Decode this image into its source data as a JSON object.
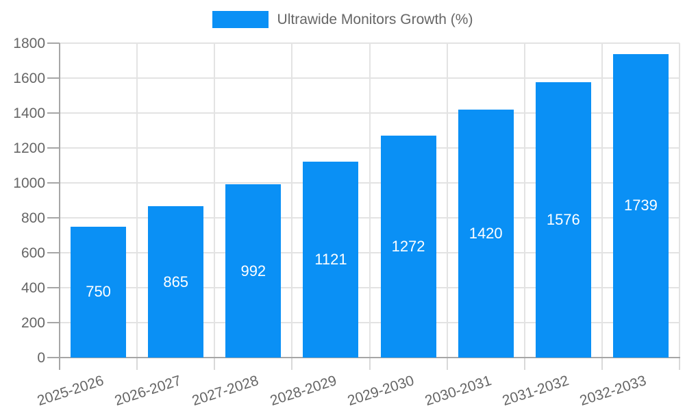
{
  "chart_data": {
    "type": "bar",
    "title": "",
    "legend": "Ultrawide Monitors Growth (%)",
    "legend_position": "top",
    "categories": [
      "2025-2026",
      "2026-2027",
      "2027-2028",
      "2028-2029",
      "2029-2030",
      "2030-2031",
      "2031-2032",
      "2032-2033"
    ],
    "values": [
      750,
      865,
      992,
      1121,
      1272,
      1420,
      1576,
      1739
    ],
    "xlabel": "",
    "ylabel": "",
    "ylim": [
      0,
      1800
    ],
    "ytick_step": 200,
    "yticks": [
      0,
      200,
      400,
      600,
      800,
      1000,
      1200,
      1400,
      1600,
      1800
    ],
    "grid": true,
    "value_labels_inside_bars": true,
    "colors": {
      "bar": "#0a90f5",
      "text": "#666666",
      "value_label": "#ffffff",
      "grid": "#e3e3e3",
      "axis": "#a6a6a6",
      "boundary_tick": "#d9d9d9",
      "background": "#ffffff"
    }
  }
}
